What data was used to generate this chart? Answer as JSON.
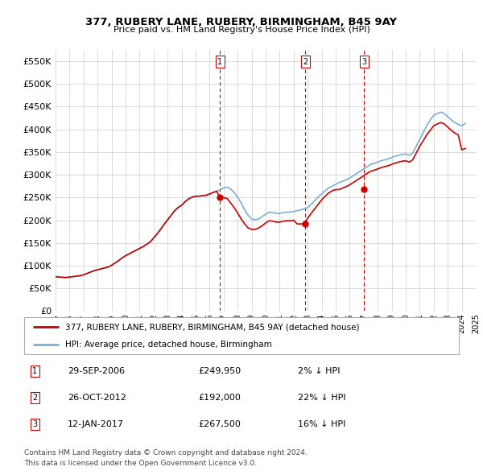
{
  "title": "377, RUBERY LANE, RUBERY, BIRMINGHAM, B45 9AY",
  "subtitle": "Price paid vs. HM Land Registry's House Price Index (HPI)",
  "ylim": [
    0,
    575000
  ],
  "yticks": [
    0,
    50000,
    100000,
    150000,
    200000,
    250000,
    300000,
    350000,
    400000,
    450000,
    500000,
    550000
  ],
  "sale_color": "#cc0000",
  "hpi_color": "#7bafd4",
  "vline_color": "#cc0000",
  "grid_color": "#cccccc",
  "bg_color": "#ffffff",
  "transactions": [
    {
      "label": "1",
      "date_str": "29-SEP-2006",
      "date_x": 2006.75,
      "price": 249950,
      "pct": "2%",
      "dir": "↓"
    },
    {
      "label": "2",
      "date_str": "26-OCT-2012",
      "date_x": 2012.83,
      "price": 192000,
      "pct": "22%",
      "dir": "↓"
    },
    {
      "label": "3",
      "date_str": "12-JAN-2017",
      "date_x": 2017.04,
      "price": 267500,
      "pct": "16%",
      "dir": "↓"
    }
  ],
  "hpi_x": [
    1995.0,
    1995.25,
    1995.5,
    1995.75,
    1996.0,
    1996.25,
    1996.5,
    1996.75,
    1997.0,
    1997.25,
    1997.5,
    1997.75,
    1998.0,
    1998.25,
    1998.5,
    1998.75,
    1999.0,
    1999.25,
    1999.5,
    1999.75,
    2000.0,
    2000.25,
    2000.5,
    2000.75,
    2001.0,
    2001.25,
    2001.5,
    2001.75,
    2002.0,
    2002.25,
    2002.5,
    2002.75,
    2003.0,
    2003.25,
    2003.5,
    2003.75,
    2004.0,
    2004.25,
    2004.5,
    2004.75,
    2005.0,
    2005.25,
    2005.5,
    2005.75,
    2006.0,
    2006.25,
    2006.5,
    2006.75,
    2007.0,
    2007.25,
    2007.5,
    2007.75,
    2008.0,
    2008.25,
    2008.5,
    2008.75,
    2009.0,
    2009.25,
    2009.5,
    2009.75,
    2010.0,
    2010.25,
    2010.5,
    2010.75,
    2011.0,
    2011.25,
    2011.5,
    2011.75,
    2012.0,
    2012.25,
    2012.5,
    2012.75,
    2013.0,
    2013.25,
    2013.5,
    2013.75,
    2014.0,
    2014.25,
    2014.5,
    2014.75,
    2015.0,
    2015.25,
    2015.5,
    2015.75,
    2016.0,
    2016.25,
    2016.5,
    2016.75,
    2017.0,
    2017.25,
    2017.5,
    2017.75,
    2018.0,
    2018.25,
    2018.5,
    2018.75,
    2019.0,
    2019.25,
    2019.5,
    2019.75,
    2020.0,
    2020.25,
    2020.5,
    2020.75,
    2021.0,
    2021.25,
    2021.5,
    2021.75,
    2022.0,
    2022.25,
    2022.5,
    2022.75,
    2023.0,
    2023.25,
    2023.5,
    2023.75,
    2024.0,
    2024.25
  ],
  "hpi_y": [
    76000,
    75000,
    74500,
    74000,
    75000,
    76000,
    77000,
    78000,
    80000,
    83000,
    86000,
    89000,
    91000,
    93000,
    95000,
    97000,
    101000,
    106000,
    111000,
    117000,
    122000,
    126000,
    130000,
    134000,
    138000,
    142000,
    147000,
    152000,
    161000,
    170000,
    180000,
    191000,
    201000,
    211000,
    221000,
    228000,
    233000,
    241000,
    247000,
    251000,
    253000,
    253000,
    254000,
    255000,
    258000,
    261000,
    264000,
    267000,
    271000,
    273000,
    269000,
    261000,
    251000,
    238000,
    223000,
    211000,
    203000,
    201000,
    203000,
    208000,
    213000,
    218000,
    217000,
    215000,
    215000,
    217000,
    218000,
    218000,
    219000,
    221000,
    223000,
    225000,
    228000,
    235000,
    243000,
    251000,
    258000,
    265000,
    271000,
    275000,
    279000,
    283000,
    286000,
    289000,
    293000,
    298000,
    303000,
    308000,
    313000,
    318000,
    323000,
    325000,
    328000,
    331000,
    333000,
    335000,
    338000,
    341000,
    343000,
    345000,
    346000,
    343000,
    348000,
    363000,
    378000,
    393000,
    408000,
    421000,
    431000,
    435000,
    438000,
    435000,
    428000,
    421000,
    415000,
    411000,
    408000,
    413000
  ],
  "sale_y": [
    76000,
    75000,
    74500,
    74000,
    75000,
    76000,
    77000,
    78000,
    80000,
    83000,
    86000,
    89000,
    91000,
    93000,
    95000,
    97000,
    101000,
    106000,
    111000,
    117000,
    122000,
    126000,
    130000,
    134000,
    138000,
    142000,
    147000,
    152000,
    161000,
    170000,
    180000,
    191000,
    201000,
    211000,
    221000,
    228000,
    233000,
    241000,
    247000,
    251000,
    253000,
    253000,
    254000,
    255000,
    258000,
    261000,
    264000,
    249950,
    249950,
    248000,
    238000,
    228000,
    216000,
    203000,
    192000,
    183000,
    180000,
    180000,
    183000,
    188000,
    194000,
    199000,
    198000,
    196000,
    196000,
    198000,
    199000,
    199000,
    200000,
    192000,
    192000,
    192000,
    205000,
    215000,
    225000,
    235000,
    245000,
    253000,
    260000,
    265000,
    267500,
    267500,
    271000,
    274000,
    278000,
    283000,
    288000,
    293000,
    298000,
    303000,
    308000,
    310000,
    313000,
    316000,
    318000,
    320000,
    323000,
    326000,
    328000,
    330000,
    331000,
    328000,
    333000,
    348000,
    363000,
    375000,
    388000,
    398000,
    408000,
    412000,
    415000,
    412000,
    405000,
    398000,
    392000,
    388000,
    355000,
    358000
  ],
  "legend_sale_label": "377, RUBERY LANE, RUBERY, BIRMINGHAM, B45 9AY (detached house)",
  "legend_hpi_label": "HPI: Average price, detached house, Birmingham",
  "footnote_line1": "Contains HM Land Registry data © Crown copyright and database right 2024.",
  "footnote_line2": "This data is licensed under the Open Government Licence v3.0.",
  "xlim": [
    1995,
    2025
  ],
  "xtick_start": 1995,
  "xtick_end": 2025,
  "xtick_step": 1
}
